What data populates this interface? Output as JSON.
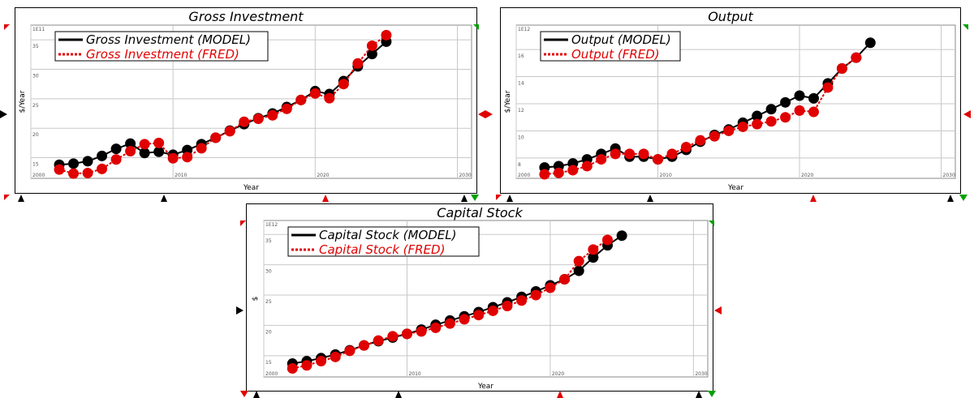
{
  "panels": [
    {
      "title": "Gross Investment",
      "ylabel": "$/Year",
      "xlabel": "Year",
      "exponent_label": "1E11"
    },
    {
      "title": "Output",
      "ylabel": "$/Year",
      "xlabel": "Year",
      "exponent_label": "1E12"
    },
    {
      "title": "Capital Stock",
      "ylabel": "$",
      "xlabel": "Year",
      "exponent_label": "1E12"
    }
  ],
  "colors": {
    "model": "#000000",
    "fred": "#e00000",
    "grid": "#c8c8c8",
    "marker_green": "#00a000"
  },
  "chart_data": [
    {
      "type": "line",
      "title": "Gross Investment",
      "xlabel": "Year",
      "ylabel": "$/Year",
      "x_ticks": [
        2000,
        2010,
        2020,
        2030
      ],
      "y_ticks": [
        15,
        20,
        25,
        30,
        35
      ],
      "y_multiplier_label": "1E11",
      "xlim": [
        2000,
        2031
      ],
      "ylim": [
        11.5,
        37.5
      ],
      "legend_position": "top-left",
      "series": [
        {
          "name": "Gross Investment (MODEL)",
          "style": "solid",
          "x": [
            2002,
            2003,
            2004,
            2005,
            2006,
            2007,
            2008,
            2009,
            2010,
            2011,
            2012,
            2013,
            2014,
            2015,
            2016,
            2017,
            2018,
            2019,
            2020,
            2021,
            2022,
            2023,
            2024,
            2025
          ],
          "y": [
            13.8,
            14.0,
            14.4,
            15.3,
            16.5,
            17.4,
            15.8,
            16.0,
            15.5,
            16.3,
            17.3,
            18.4,
            19.6,
            20.7,
            21.7,
            22.5,
            23.6,
            24.8,
            26.3,
            25.8,
            28.0,
            30.5,
            32.6,
            34.7
          ]
        },
        {
          "name": "Gross Investment (FRED)",
          "style": "dashed",
          "x": [
            2002,
            2003,
            2004,
            2005,
            2006,
            2007,
            2008,
            2009,
            2010,
            2011,
            2012,
            2013,
            2014,
            2015,
            2016,
            2017,
            2018,
            2019,
            2020,
            2021,
            2022,
            2023,
            2024,
            2025
          ],
          "y": [
            13.0,
            12.3,
            12.4,
            13.1,
            14.7,
            16.1,
            17.3,
            17.5,
            14.9,
            15.1,
            16.6,
            18.4,
            19.5,
            21.1,
            21.6,
            22.2,
            23.3,
            24.8,
            25.9,
            25.1,
            27.5,
            31.0,
            34.0,
            35.8
          ]
        }
      ]
    },
    {
      "type": "line",
      "title": "Output",
      "xlabel": "Year",
      "ylabel": "$/Year",
      "x_ticks": [
        2000,
        2010,
        2020,
        2030
      ],
      "y_ticks": [
        8,
        10,
        12,
        14,
        16
      ],
      "y_multiplier_label": "1E12",
      "xlim": [
        2000,
        2031
      ],
      "ylim": [
        6.5,
        17.8
      ],
      "legend_position": "top-left",
      "series": [
        {
          "name": "Output (MODEL)",
          "style": "solid",
          "x": [
            2002,
            2003,
            2004,
            2005,
            2006,
            2007,
            2008,
            2009,
            2010,
            2011,
            2012,
            2013,
            2014,
            2015,
            2016,
            2017,
            2018,
            2019,
            2020,
            2021,
            2022,
            2023,
            2024,
            2025
          ],
          "y": [
            7.3,
            7.4,
            7.6,
            7.9,
            8.3,
            8.7,
            8.1,
            8.1,
            7.9,
            8.1,
            8.6,
            9.2,
            9.7,
            10.1,
            10.6,
            11.1,
            11.6,
            12.1,
            12.6,
            12.4,
            13.5,
            14.6,
            15.4,
            16.5
          ]
        },
        {
          "name": "Output (FRED)",
          "style": "dashed",
          "x": [
            2002,
            2003,
            2004,
            2005,
            2006,
            2007,
            2008,
            2009,
            2010,
            2011,
            2012,
            2013,
            2014,
            2015,
            2016,
            2017,
            2018,
            2019,
            2020,
            2021,
            2022,
            2023,
            2024
          ],
          "y": [
            6.8,
            6.9,
            7.1,
            7.4,
            7.9,
            8.3,
            8.3,
            8.3,
            7.9,
            8.3,
            8.8,
            9.3,
            9.6,
            10.0,
            10.3,
            10.5,
            10.7,
            11.0,
            11.5,
            11.4,
            13.2,
            14.6,
            15.4
          ]
        }
      ]
    },
    {
      "type": "line",
      "title": "Capital Stock",
      "xlabel": "Year",
      "ylabel": "$",
      "x_ticks": [
        2000,
        2010,
        2020,
        2030
      ],
      "y_ticks": [
        15,
        20,
        25,
        30,
        35
      ],
      "y_multiplier_label": "1E12",
      "xlim": [
        2000,
        2031
      ],
      "ylim": [
        11.5,
        37.3
      ],
      "legend_position": "top-left",
      "series": [
        {
          "name": "Capital Stock (MODEL)",
          "style": "solid",
          "x": [
            2002,
            2003,
            2004,
            2005,
            2006,
            2007,
            2008,
            2009,
            2010,
            2011,
            2012,
            2013,
            2014,
            2015,
            2016,
            2017,
            2018,
            2019,
            2020,
            2021,
            2022,
            2023,
            2024,
            2025
          ],
          "y": [
            13.7,
            14.1,
            14.6,
            15.2,
            15.9,
            16.7,
            17.4,
            18.0,
            18.6,
            19.3,
            20.1,
            20.8,
            21.5,
            22.2,
            23.0,
            23.8,
            24.7,
            25.6,
            26.6,
            27.6,
            29.0,
            31.2,
            33.2,
            34.8
          ]
        },
        {
          "name": "Capital Stock (FRED)",
          "style": "dashed",
          "x": [
            2002,
            2003,
            2004,
            2005,
            2006,
            2007,
            2008,
            2009,
            2010,
            2011,
            2012,
            2013,
            2014,
            2015,
            2016,
            2017,
            2018,
            2019,
            2020,
            2021,
            2022,
            2023,
            2024
          ],
          "y": [
            12.9,
            13.4,
            14.1,
            14.8,
            15.8,
            16.7,
            17.5,
            18.2,
            18.6,
            19.0,
            19.6,
            20.3,
            21.0,
            21.7,
            22.4,
            23.2,
            24.1,
            25.0,
            26.2,
            27.6,
            30.6,
            32.5,
            34.1
          ]
        }
      ]
    }
  ]
}
